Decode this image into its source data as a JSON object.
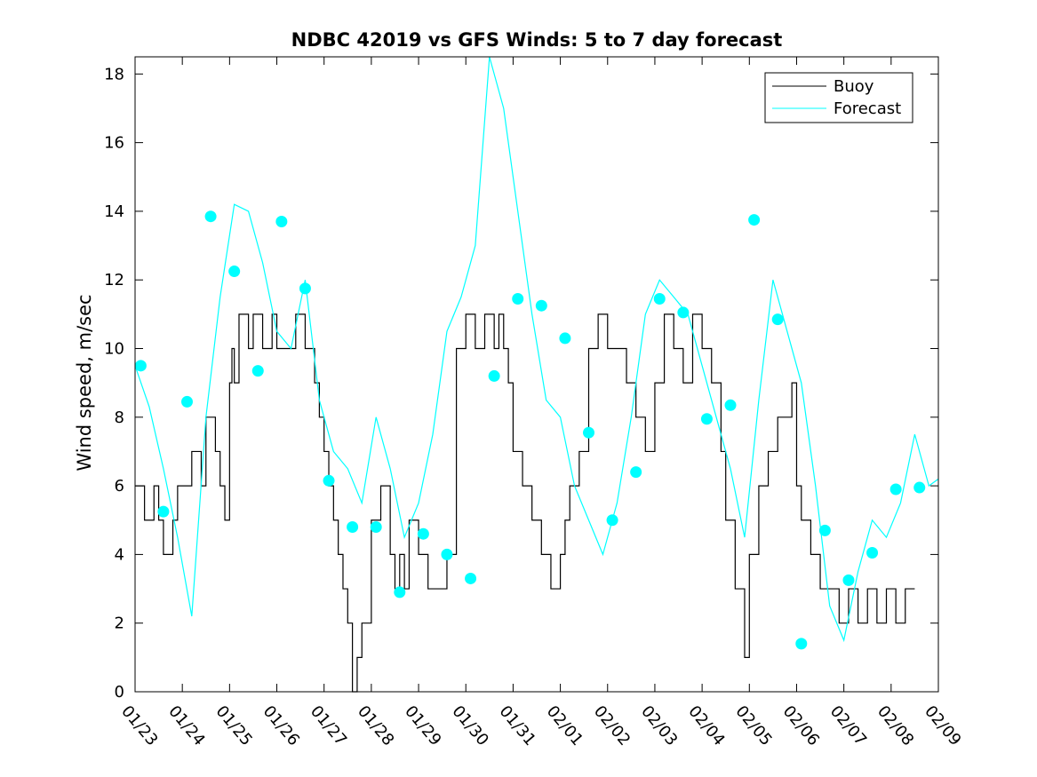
{
  "chart_data": {
    "type": "line",
    "title": "NDBC 42019 vs GFS Winds: 5 to 7 day forecast",
    "xlabel": "",
    "ylabel": "Wind speed, m/sec",
    "x_range_days": [
      0,
      17
    ],
    "ylim": [
      0,
      18.5
    ],
    "y_ticks": [
      0,
      2,
      4,
      6,
      8,
      10,
      12,
      14,
      16,
      18
    ],
    "x_tick_labels": [
      "01/23",
      "01/24",
      "01/25",
      "01/26",
      "01/27",
      "01/28",
      "01/29",
      "01/30",
      "01/31",
      "02/01",
      "02/02",
      "02/03",
      "02/04",
      "02/05",
      "02/06",
      "02/07",
      "02/08",
      "02/09"
    ],
    "grid": false,
    "legend": {
      "position": "top-right",
      "entries": [
        "Buoy",
        "Forecast"
      ]
    },
    "colors": {
      "buoy": "#000000",
      "forecast": "#00ffff",
      "markers": "#00ffff"
    },
    "series": [
      {
        "name": "Buoy",
        "x": [
          0,
          0.2,
          0.4,
          0.5,
          0.6,
          0.8,
          0.9,
          1.0,
          1.2,
          1.4,
          1.5,
          1.7,
          1.8,
          1.9,
          2.0,
          2.05,
          2.1,
          2.2,
          2.4,
          2.5,
          2.7,
          2.9,
          3.0,
          3.2,
          3.4,
          3.6,
          3.8,
          3.9,
          4.0,
          4.1,
          4.2,
          4.3,
          4.4,
          4.5,
          4.6,
          4.7,
          4.8,
          5.0,
          5.2,
          5.4,
          5.5,
          5.6,
          5.7,
          5.8,
          6.0,
          6.2,
          6.4,
          6.6,
          6.8,
          7.0,
          7.2,
          7.4,
          7.6,
          7.7,
          7.8,
          7.9,
          8.0,
          8.2,
          8.4,
          8.6,
          8.8,
          9.0,
          9.1,
          9.2,
          9.4,
          9.6,
          9.8,
          10.0,
          10.2,
          10.4,
          10.6,
          10.8,
          11.0,
          11.2,
          11.4,
          11.6,
          11.8,
          12.0,
          12.2,
          12.4,
          12.5,
          12.7,
          12.9,
          13.0,
          13.2,
          13.4,
          13.6,
          13.8,
          13.9,
          14.0,
          14.1,
          14.3,
          14.5,
          14.7,
          14.9,
          15.1,
          15.3,
          15.5,
          15.7,
          15.9,
          16.1,
          16.3,
          16.5
        ],
        "values": [
          6,
          5,
          6,
          5,
          4,
          5,
          6,
          6,
          7,
          6,
          8,
          7,
          6,
          5,
          9,
          10,
          9,
          11,
          10,
          11,
          10,
          11,
          10,
          10,
          11,
          10,
          9,
          8,
          7,
          6,
          5,
          4,
          3,
          2,
          0,
          1,
          2,
          5,
          6,
          4,
          3,
          4,
          3,
          5,
          4,
          3,
          3,
          4,
          10,
          11,
          10,
          11,
          10,
          11,
          10,
          9,
          7,
          6,
          5,
          4,
          3,
          4,
          5,
          6,
          7,
          10,
          11,
          10,
          10,
          9,
          8,
          7,
          9,
          11,
          10,
          9,
          11,
          10,
          9,
          7,
          5,
          3,
          1,
          4,
          6,
          7,
          8,
          8,
          9,
          6,
          5,
          4,
          3,
          3,
          2,
          3,
          2,
          3,
          2,
          3,
          2,
          3,
          3
        ]
      },
      {
        "name": "Forecast",
        "x": [
          0,
          0.3,
          0.6,
          0.9,
          1.2,
          1.5,
          1.8,
          2.1,
          2.4,
          2.7,
          3.0,
          3.3,
          3.6,
          3.9,
          4.2,
          4.5,
          4.8,
          5.1,
          5.4,
          5.7,
          6.0,
          6.3,
          6.6,
          6.9,
          7.2,
          7.5,
          7.8,
          8.1,
          8.4,
          8.7,
          9.0,
          9.3,
          9.6,
          9.9,
          10.2,
          10.5,
          10.8,
          11.1,
          11.4,
          11.7,
          12.0,
          12.3,
          12.6,
          12.9,
          13.2,
          13.5,
          13.8,
          14.1,
          14.4,
          14.7,
          15.0,
          15.3,
          15.6,
          15.9,
          16.2,
          16.5,
          16.8,
          17.0
        ],
        "values": [
          9.5,
          8.3,
          6.5,
          4.5,
          2.2,
          8.0,
          11.5,
          14.2,
          14.0,
          12.5,
          10.5,
          10.0,
          12.0,
          8.5,
          7.0,
          6.5,
          5.5,
          8.0,
          6.5,
          4.5,
          5.5,
          7.5,
          10.5,
          11.5,
          13.0,
          18.5,
          17.0,
          14.0,
          11.0,
          8.5,
          8.0,
          6.0,
          5.0,
          4.0,
          5.5,
          8.0,
          11.0,
          12.0,
          11.5,
          11.0,
          9.5,
          8.0,
          6.5,
          4.5,
          8.5,
          12.0,
          10.5,
          9.0,
          6.0,
          2.5,
          1.5,
          3.5,
          5.0,
          4.5,
          5.5,
          7.5,
          6.0,
          6.2
        ]
      }
    ],
    "markers": {
      "name": "Forecast points",
      "x": [
        0.12,
        0.6,
        1.1,
        1.6,
        2.1,
        2.6,
        3.1,
        3.6,
        4.1,
        4.6,
        5.1,
        5.6,
        6.1,
        6.6,
        7.1,
        7.6,
        8.1,
        8.6,
        9.1,
        9.6,
        10.1,
        10.6,
        11.1,
        11.6,
        12.1,
        12.6,
        13.1,
        13.6,
        14.1,
        14.6,
        15.1,
        15.6,
        16.1,
        16.6
      ],
      "values": [
        9.5,
        5.25,
        8.45,
        13.85,
        12.25,
        9.35,
        13.7,
        11.75,
        6.15,
        4.8,
        4.8,
        2.9,
        4.6,
        4.0,
        3.3,
        9.2,
        11.45,
        11.25,
        10.3,
        7.55,
        5.0,
        6.4,
        11.45,
        11.05,
        7.95,
        8.35,
        13.75,
        10.85,
        1.4,
        4.7,
        3.25,
        4.05,
        5.9,
        5.95
      ]
    }
  }
}
